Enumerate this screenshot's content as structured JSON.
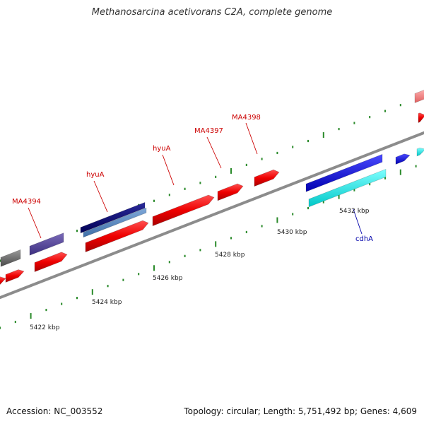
{
  "title": "Methanosarcina acetivorans C2A, complete genome",
  "footer": {
    "accession": "Accession: NC_003552",
    "summary": "Topology: circular; Length: 5,751,492 bp; Genes: 4,609"
  },
  "colors": {
    "backbone": "#8c8c8c",
    "tick": "#2a8a2a",
    "red_label": "#cc0000",
    "blue_label": "#0000aa"
  },
  "scale": {
    "labels": [
      {
        "text": "5422 kbp"
      },
      {
        "text": "5424 kbp"
      },
      {
        "text": "5426 kbp"
      },
      {
        "text": "5428 kbp"
      },
      {
        "text": "5430 kbp"
      },
      {
        "text": "5432 kbp"
      }
    ]
  },
  "gene_labels": [
    {
      "name": "MA4394",
      "color": "#cc0000"
    },
    {
      "name": "hyuA",
      "color": "#cc0000"
    },
    {
      "name": "hyuA",
      "color": "#cc0000"
    },
    {
      "name": "MA4397",
      "color": "#cc0000"
    },
    {
      "name": "MA4398",
      "color": "#cc0000"
    },
    {
      "name": "cdhA",
      "color": "#0000aa"
    }
  ]
}
